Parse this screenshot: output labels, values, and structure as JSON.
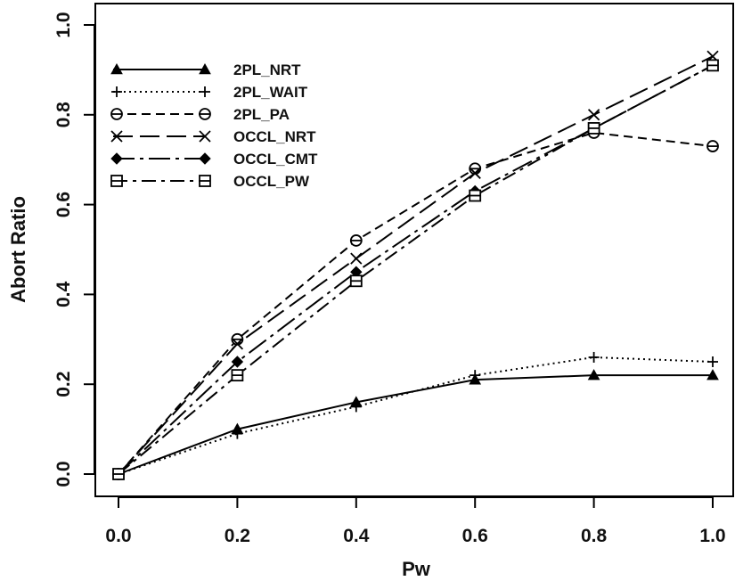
{
  "chart_data": {
    "type": "line",
    "title": "",
    "xlabel": "Pw",
    "ylabel": "Abort Ratio",
    "xlim": [
      0.0,
      1.0
    ],
    "ylim": [
      0.0,
      1.0
    ],
    "x_ticks": [
      "0.0",
      "0.2",
      "0.4",
      "0.6",
      "0.8",
      "1.0"
    ],
    "y_ticks": [
      "0.0",
      "0.2",
      "0.4",
      "0.6",
      "0.8",
      "1.0"
    ],
    "grid": false,
    "legend_position": "top-left",
    "x": [
      0.0,
      0.2,
      0.4,
      0.6,
      0.8,
      1.0
    ],
    "series": [
      {
        "name": "2PL_NRT",
        "values": [
          0.0,
          0.1,
          0.16,
          0.21,
          0.22,
          0.22
        ],
        "marker": "triangle",
        "dash": "solid"
      },
      {
        "name": "2PL_WAIT",
        "values": [
          0.0,
          0.09,
          0.15,
          0.22,
          0.26,
          0.25
        ],
        "marker": "plus",
        "dash": "dotted"
      },
      {
        "name": "2PL_PA",
        "values": [
          0.0,
          0.3,
          0.52,
          0.68,
          0.76,
          0.73
        ],
        "marker": "circle-plus",
        "dash": "short-dash"
      },
      {
        "name": "OCCL_NRT",
        "values": [
          0.0,
          0.29,
          0.48,
          0.67,
          0.8,
          0.93
        ],
        "marker": "cross",
        "dash": "long-dash"
      },
      {
        "name": "OCCL_CMT",
        "values": [
          0.0,
          0.25,
          0.45,
          0.63,
          0.77,
          0.91
        ],
        "marker": "diamond",
        "dash": "long-dash-dot"
      },
      {
        "name": "OCCL_PW",
        "values": [
          0.0,
          0.22,
          0.43,
          0.62,
          0.77,
          0.91
        ],
        "marker": "square-plus",
        "dash": "dash-dot"
      }
    ]
  }
}
